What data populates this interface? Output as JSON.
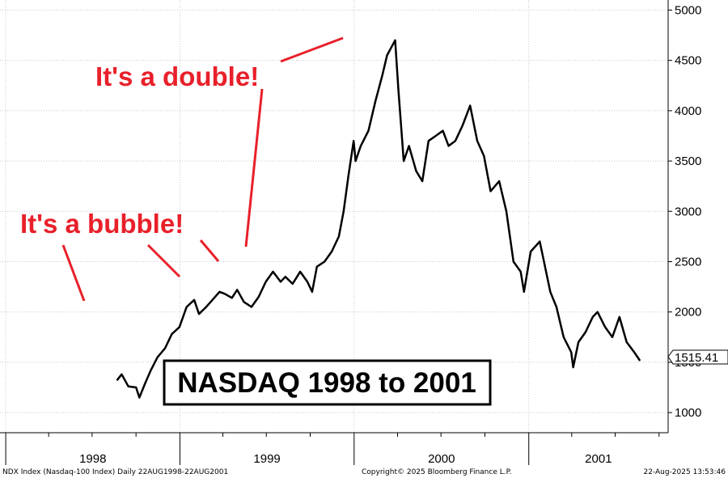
{
  "chart_data": {
    "type": "line",
    "title": "NASDAQ 1998 to 2001",
    "ylim": [
      800,
      5100
    ],
    "yticks": [
      1000,
      1500,
      2000,
      2500,
      3000,
      3500,
      4000,
      4500,
      5000
    ],
    "xlim": [
      "1997-12-20",
      "2001-10-20"
    ],
    "xticks": [
      "1998",
      "1999",
      "2000",
      "2001"
    ],
    "grid": true,
    "last_value_label": "1515.41",
    "series": [
      {
        "color": "#000000",
        "x": [
          "1998-08-22",
          "1998-09-01",
          "1998-09-15",
          "1998-10-01",
          "1998-10-08",
          "1998-10-20",
          "1998-11-01",
          "1998-11-15",
          "1998-12-01",
          "1998-12-15",
          "1998-12-31",
          "1999-01-15",
          "1999-01-31",
          "1999-02-10",
          "1999-02-25",
          "1999-03-10",
          "1999-03-25",
          "1999-04-05",
          "1999-04-20",
          "1999-05-01",
          "1999-05-15",
          "1999-05-31",
          "1999-06-15",
          "1999-06-30",
          "1999-07-15",
          "1999-07-31",
          "1999-08-10",
          "1999-08-25",
          "1999-09-10",
          "1999-09-25",
          "1999-10-05",
          "1999-10-15",
          "1999-10-31",
          "1999-11-15",
          "1999-11-30",
          "1999-12-10",
          "1999-12-20",
          "1999-12-31",
          "2000-01-04",
          "2000-01-15",
          "2000-01-31",
          "2000-02-15",
          "2000-02-29",
          "2000-03-10",
          "2000-03-27",
          "2000-04-03",
          "2000-04-14",
          "2000-04-25",
          "2000-05-10",
          "2000-05-23",
          "2000-06-05",
          "2000-06-20",
          "2000-07-05",
          "2000-07-17",
          "2000-07-31",
          "2000-08-15",
          "2000-08-31",
          "2000-09-15",
          "2000-09-29",
          "2000-10-13",
          "2000-10-31",
          "2000-11-15",
          "2000-11-30",
          "2000-12-15",
          "2000-12-22",
          "2001-01-05",
          "2001-01-24",
          "2001-02-15",
          "2001-02-28",
          "2001-03-15",
          "2001-03-31",
          "2001-04-04",
          "2001-04-15",
          "2001-04-30",
          "2001-05-15",
          "2001-05-25",
          "2001-06-10",
          "2001-06-25",
          "2001-07-10",
          "2001-07-25",
          "2001-08-10",
          "2001-08-22"
        ],
        "values": [
          1320,
          1380,
          1260,
          1250,
          1150,
          1290,
          1420,
          1550,
          1640,
          1780,
          1850,
          2050,
          2120,
          1980,
          2050,
          2120,
          2200,
          2180,
          2140,
          2220,
          2100,
          2050,
          2150,
          2300,
          2400,
          2300,
          2350,
          2280,
          2400,
          2300,
          2200,
          2450,
          2500,
          2600,
          2750,
          3000,
          3350,
          3700,
          3500,
          3650,
          3800,
          4100,
          4350,
          4550,
          4700,
          4200,
          3500,
          3650,
          3400,
          3300,
          3700,
          3750,
          3800,
          3650,
          3700,
          3850,
          4050,
          3700,
          3550,
          3200,
          3300,
          3000,
          2500,
          2400,
          2200,
          2600,
          2700,
          2200,
          2050,
          1750,
          1600,
          1450,
          1700,
          1800,
          1950,
          2000,
          1850,
          1750,
          1950,
          1700,
          1600,
          1515
        ]
      }
    ],
    "annotations": [
      "It's a double!",
      "It's a bubble!"
    ],
    "footer": {
      "left": "NDX Index (Nasdaq-100 Index)  Daily 22AUG1998-22AUG2001",
      "center": "Copyright© 2025 Bloomberg Finance L.P.",
      "right": "22-Aug-2025 13:53:46"
    }
  }
}
